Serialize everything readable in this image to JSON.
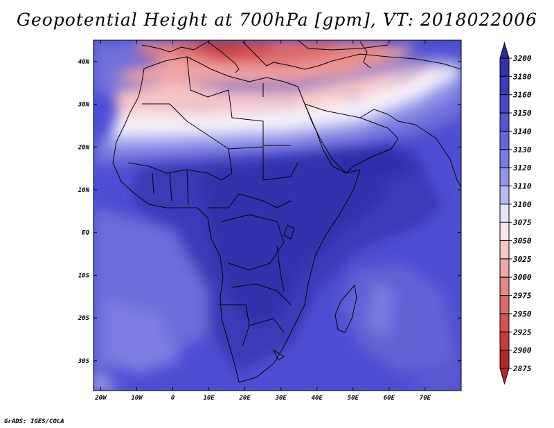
{
  "title": "Geopotential Height at 700hPa [gpm], VT: 2018022006",
  "credit": "GrADS: IGES/COLA",
  "map": {
    "variable": "Geopotential Height",
    "level": "700hPa",
    "units": "gpm",
    "valid_time": "2018022006",
    "lon_range": [
      -22,
      80
    ],
    "lat_range": [
      -37,
      45
    ],
    "x_ticks": [
      {
        "value": -20,
        "label": "20W"
      },
      {
        "value": -10,
        "label": "10W"
      },
      {
        "value": 0,
        "label": "0"
      },
      {
        "value": 10,
        "label": "10E"
      },
      {
        "value": 20,
        "label": "20E"
      },
      {
        "value": 30,
        "label": "30E"
      },
      {
        "value": 40,
        "label": "40E"
      },
      {
        "value": 50,
        "label": "50E"
      },
      {
        "value": 60,
        "label": "60E"
      },
      {
        "value": 70,
        "label": "70E"
      }
    ],
    "y_ticks": [
      {
        "value": 40,
        "label": "40N"
      },
      {
        "value": 30,
        "label": "30N"
      },
      {
        "value": 20,
        "label": "20N"
      },
      {
        "value": 10,
        "label": "10N"
      },
      {
        "value": 0,
        "label": "EQ"
      },
      {
        "value": -10,
        "label": "10S"
      },
      {
        "value": -20,
        "label": "20S"
      },
      {
        "value": -30,
        "label": "30S"
      }
    ]
  },
  "colorbar": {
    "labels": [
      "3200",
      "3180",
      "3160",
      "3150",
      "3140",
      "3130",
      "3120",
      "3110",
      "3100",
      "3075",
      "3050",
      "3025",
      "3000",
      "2975",
      "2950",
      "2925",
      "2900",
      "2875"
    ],
    "colors": [
      "#2a2a98",
      "#3232ac",
      "#3c3cbc",
      "#4848c6",
      "#5656d0",
      "#6666da",
      "#7a7ae2",
      "#9494ea",
      "#b8b8f2",
      "#e6e6fa",
      "#fbe6e6",
      "#f6c6c6",
      "#f0a8a8",
      "#e88888",
      "#de6c6c",
      "#d45252",
      "#c43c3c",
      "#b42828"
    ]
  }
}
